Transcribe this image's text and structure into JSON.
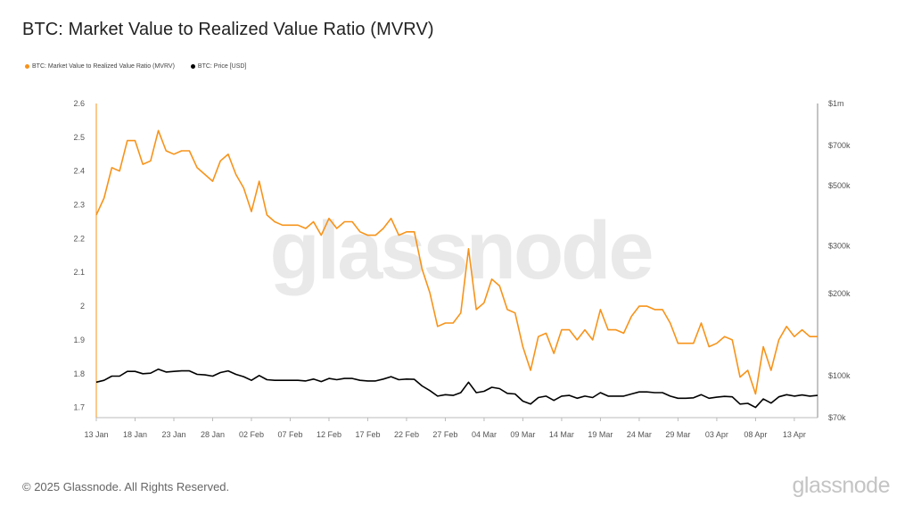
{
  "header": {
    "title": "BTC: Market Value to Realized Value Ratio (MVRV)"
  },
  "legend": {
    "items": [
      {
        "label": "BTC: Market Value to Realized Value Ratio (MVRV)",
        "color": "#f7931a"
      },
      {
        "label": "BTC: Price [USD]",
        "color": "#000000"
      }
    ]
  },
  "footer": {
    "copyright": "© 2025 Glassnode. All Rights Reserved.",
    "brand": "glassnode"
  },
  "watermark": "glassnode",
  "chart_data": {
    "type": "line",
    "x_start": "13 Jan",
    "x_tick_labels": [
      "13 Jan",
      "18 Jan",
      "23 Jan",
      "28 Jan",
      "02 Feb",
      "07 Feb",
      "12 Feb",
      "17 Feb",
      "22 Feb",
      "27 Feb",
      "04 Mar",
      "09 Mar",
      "14 Mar",
      "19 Mar",
      "24 Mar",
      "29 Mar",
      "03 Apr",
      "08 Apr",
      "13 Apr"
    ],
    "y_left": {
      "ticks": [
        1.7,
        1.8,
        1.9,
        2,
        2.1,
        2.2,
        2.3,
        2.4,
        2.5,
        2.6
      ],
      "tick_labels": [
        "1.7",
        "1.8",
        "1.9",
        "2",
        "2.1",
        "2.2",
        "2.3",
        "2.4",
        "2.5",
        "2.6"
      ],
      "range": [
        1.67,
        2.6
      ]
    },
    "y_right": {
      "scale": "log",
      "ticks": [
        70000,
        100000,
        200000,
        300000,
        500000,
        700000,
        1000000
      ],
      "tick_labels": [
        "$70k",
        "$100k",
        "$200k",
        "$300k",
        "$500k",
        "$700k",
        "$1m"
      ],
      "range": [
        70000,
        1000000
      ]
    },
    "series": [
      {
        "name": "BTC: Market Value to Realized Value Ratio (MVRV)",
        "axis": "left",
        "color": "#f7931a",
        "values": [
          2.27,
          2.32,
          2.41,
          2.4,
          2.49,
          2.49,
          2.42,
          2.43,
          2.52,
          2.46,
          2.45,
          2.46,
          2.46,
          2.41,
          2.39,
          2.37,
          2.43,
          2.45,
          2.39,
          2.35,
          2.28,
          2.37,
          2.27,
          2.25,
          2.24,
          2.24,
          2.24,
          2.23,
          2.25,
          2.21,
          2.26,
          2.23,
          2.25,
          2.25,
          2.22,
          2.21,
          2.21,
          2.23,
          2.26,
          2.21,
          2.22,
          2.22,
          2.11,
          2.04,
          1.94,
          1.95,
          1.95,
          1.98,
          2.17,
          1.99,
          2.01,
          2.08,
          2.06,
          1.99,
          1.98,
          1.88,
          1.81,
          1.91,
          1.92,
          1.86,
          1.93,
          1.93,
          1.9,
          1.93,
          1.9,
          1.99,
          1.93,
          1.93,
          1.92,
          1.97,
          2.0,
          2.0,
          1.99,
          1.99,
          1.95,
          1.89,
          1.89,
          1.89,
          1.95,
          1.88,
          1.89,
          1.91,
          1.9,
          1.79,
          1.81,
          1.74,
          1.88,
          1.81,
          1.9,
          1.94,
          1.91,
          1.93,
          1.91,
          1.91
        ]
      },
      {
        "name": "BTC: Price [USD]",
        "axis": "right",
        "color": "#000000",
        "values": [
          94500,
          96000,
          99500,
          99500,
          103500,
          103500,
          101500,
          102000,
          105500,
          103000,
          103500,
          104000,
          104000,
          101000,
          100500,
          99500,
          102500,
          104000,
          101000,
          99000,
          96000,
          100000,
          96500,
          96000,
          96000,
          96000,
          96000,
          95500,
          97000,
          95000,
          97500,
          96500,
          97500,
          97500,
          96000,
          95500,
          95500,
          97000,
          99000,
          96500,
          97000,
          96800,
          91500,
          88000,
          84000,
          85000,
          84500,
          86500,
          94500,
          86500,
          87500,
          90500,
          89500,
          86000,
          85500,
          80500,
          78500,
          83000,
          84000,
          81000,
          84000,
          84500,
          82500,
          84000,
          83000,
          86500,
          84000,
          84000,
          84000,
          85500,
          87000,
          87000,
          86500,
          86500,
          84000,
          82500,
          82500,
          82800,
          85000,
          82500,
          83200,
          83800,
          83500,
          78500,
          79000,
          76300,
          82000,
          79200,
          83500,
          85000,
          84000,
          84800,
          84000,
          84500
        ]
      }
    ]
  }
}
